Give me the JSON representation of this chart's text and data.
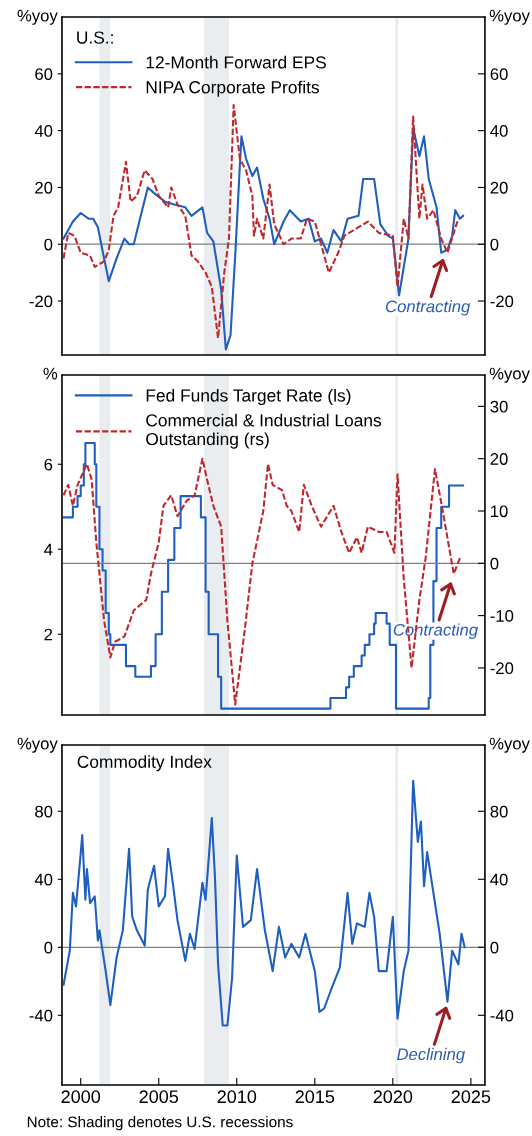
{
  "chart_data": [
    {
      "type": "line",
      "xlim": [
        1998.8,
        2025.9
      ],
      "ylim": [
        -39,
        80
      ],
      "yticks": [
        -20,
        0,
        20,
        40,
        60
      ],
      "y2lim": [
        -39,
        80
      ],
      "y2ticks": [
        -20,
        0,
        20,
        40,
        60
      ],
      "ylabel": "%yoy",
      "y2label": "%yoy",
      "tick_labels": "y",
      "legend": "top left",
      "legend_title": "U.S.:",
      "grid": false,
      "series": [
        {
          "name": "12-Month Forward EPS",
          "color": "#1f5fbf",
          "line_style": "solid",
          "x": [
            1998.9,
            1999.5,
            2000.0,
            2000.5,
            2000.8,
            2001.1,
            2001.5,
            2001.8,
            2002.3,
            2002.8,
            2003.1,
            2003.4,
            2003.8,
            2004.3,
            2004.7,
            2005.4,
            2006.0,
            2006.7,
            2007.1,
            2007.8,
            2008.1,
            2008.5,
            2009.0,
            2009.3,
            2009.6,
            2009.9,
            2010.2,
            2010.3,
            2010.6,
            2011.0,
            2011.3,
            2011.7,
            2012.1,
            2012.4,
            2013.0,
            2013.4,
            2014.1,
            2014.6,
            2015.0,
            2015.4,
            2015.8,
            2016.2,
            2016.7,
            2017.1,
            2017.8,
            2018.1,
            2018.8,
            2019.2,
            2019.7,
            2020.0,
            2020.4,
            2020.7,
            2021.0,
            2021.3,
            2021.7,
            2022.0,
            2022.3,
            2022.8,
            2023.1,
            2023.5,
            2023.8,
            2024.0,
            2024.3,
            2024.5
          ],
          "values": [
            2,
            8,
            11,
            9,
            9,
            6,
            -5,
            -13,
            -5,
            2,
            0,
            0,
            9,
            20,
            18,
            15,
            14,
            13,
            10,
            13,
            4,
            1,
            -16,
            -37,
            -32,
            -4,
            28,
            38,
            30,
            24,
            27,
            16,
            9,
            0,
            8,
            12,
            8,
            9,
            1,
            2,
            -3,
            5,
            1,
            9,
            10,
            23,
            23,
            7,
            3,
            2,
            -18,
            -8,
            2,
            41,
            31,
            38,
            23,
            13,
            -3,
            -2,
            3,
            12,
            9,
            10
          ]
        },
        {
          "name": "NIPA Corporate Profits",
          "color": "#c0282d",
          "line_style": "dashed",
          "x": [
            1998.9,
            1999.2,
            1999.6,
            2000.0,
            2000.6,
            2000.9,
            2001.5,
            2001.8,
            2002.1,
            2002.4,
            2002.9,
            2003.2,
            2003.6,
            2004.1,
            2004.6,
            2005.0,
            2005.6,
            2005.8,
            2006.2,
            2006.7,
            2007.1,
            2007.5,
            2008.0,
            2008.4,
            2008.8,
            2009.2,
            2009.5,
            2009.8,
            2010.2,
            2010.6,
            2011.0,
            2011.1,
            2011.3,
            2011.7,
            2012.1,
            2012.4,
            2013.0,
            2013.5,
            2014.1,
            2014.5,
            2015.0,
            2015.4,
            2015.9,
            2016.5,
            2016.9,
            2017.8,
            2018.4,
            2019.1,
            2020.0,
            2020.3,
            2020.7,
            2021.0,
            2021.3,
            2021.7,
            2021.9,
            2022.2,
            2022.6,
            2023.1,
            2023.5,
            2023.9,
            2024.2
          ],
          "values": [
            -5,
            4,
            3,
            -3,
            -4,
            -8,
            -6,
            -2,
            10,
            13,
            29,
            15,
            17,
            26,
            23,
            17,
            13,
            20,
            14,
            10,
            -4,
            -6,
            -10,
            -15,
            -33,
            -10,
            2,
            49,
            30,
            26,
            17,
            3,
            9,
            2,
            21,
            7,
            0,
            2,
            2,
            9,
            8,
            0,
            -10,
            -3,
            3,
            6,
            8,
            4,
            3,
            -15,
            9,
            2,
            45,
            9,
            21,
            9,
            12,
            2,
            -3,
            4,
            9
          ]
        }
      ],
      "ref_lines": [
        {
          "axis": "y",
          "value": 0,
          "color": "#808080"
        }
      ],
      "bands": [
        {
          "axis": "x",
          "from": 2001.2,
          "to": 2001.9,
          "color": "#e9edf0"
        },
        {
          "axis": "x",
          "from": 2007.9,
          "to": 2009.5,
          "color": "#e9edf0"
        },
        {
          "axis": "x",
          "from": 2020.15,
          "to": 2020.35,
          "color": "#e9edf0"
        }
      ],
      "annotations": [
        {
          "text": "Contracting",
          "x": 2023.3,
          "y": -4
        }
      ]
    },
    {
      "type": "line",
      "xlim": [
        1998.8,
        2025.9
      ],
      "ylim": [
        0.1,
        8.1
      ],
      "yticks": [
        2,
        4,
        6
      ],
      "y2lim": [
        -29,
        36
      ],
      "y2ticks": [
        -20,
        -10,
        0,
        10,
        20,
        30
      ],
      "ylabel": "%",
      "y2label": "%yoy",
      "tick_labels": "y",
      "legend": "top left",
      "grid": false,
      "series": [
        {
          "name": "Fed Funds Target Rate (ls)",
          "color": "#1f5fbf",
          "line_style": "solid",
          "type": "step",
          "x": [
            1998.9,
            1999.5,
            1999.8,
            2000.0,
            2000.2,
            2000.3,
            2000.9,
            2001.0,
            2001.2,
            2001.4,
            2001.6,
            2001.8,
            2001.9,
            2002.9,
            2003.5,
            2004.5,
            2004.8,
            2005.2,
            2005.6,
            2006.0,
            2006.4,
            2007.7,
            2008.0,
            2008.2,
            2008.8,
            2009.0,
            2016.0,
            2017.0,
            2017.2,
            2017.5,
            2018.0,
            2018.2,
            2018.5,
            2018.8,
            2018.9,
            2019.6,
            2019.8,
            2020.2,
            2022.3,
            2022.4,
            2022.6,
            2022.8,
            2023.1,
            2023.6,
            2024.5
          ],
          "values": [
            4.75,
            5.0,
            5.25,
            5.5,
            6.0,
            6.5,
            6.0,
            5.0,
            4.0,
            3.5,
            2.5,
            2.0,
            1.75,
            1.25,
            1.0,
            1.25,
            2.0,
            3.0,
            3.75,
            4.5,
            5.25,
            4.75,
            3.0,
            2.0,
            1.0,
            0.25,
            0.5,
            0.75,
            1.0,
            1.25,
            1.5,
            1.75,
            2.0,
            2.25,
            2.5,
            2.25,
            1.75,
            0.25,
            0.5,
            1.75,
            3.25,
            4.5,
            5.0,
            5.5,
            5.5
          ]
        },
        {
          "name": "Commercial & Industrial Loans\nOutstanding (rs)",
          "color": "#c0282d",
          "line_style": "dashed",
          "axis": "y2",
          "x": [
            1998.9,
            1999.2,
            1999.5,
            1999.8,
            2000.4,
            2000.7,
            2001.0,
            2001.5,
            2001.9,
            2002.2,
            2002.8,
            2003.4,
            2004.2,
            2004.5,
            2005.0,
            2005.3,
            2005.8,
            2006.2,
            2006.8,
            2007.3,
            2007.8,
            2008.1,
            2008.5,
            2009.0,
            2009.4,
            2009.9,
            2010.5,
            2011.0,
            2011.7,
            2012.0,
            2012.3,
            2012.9,
            2013.2,
            2013.5,
            2014.0,
            2014.3,
            2014.8,
            2015.4,
            2015.8,
            2016.2,
            2016.7,
            2017.2,
            2017.7,
            2018.0,
            2018.4,
            2019.1,
            2019.6,
            2020.1,
            2020.3,
            2020.7,
            2021.2,
            2021.7,
            2022.1,
            2022.7,
            2023.2,
            2023.9,
            2024.3
          ],
          "values": [
            13,
            15,
            11,
            15,
            19,
            16,
            4,
            -11,
            -18,
            -15,
            -14,
            -9,
            -7,
            -2,
            4,
            11,
            13,
            9,
            12,
            13,
            20,
            16,
            11,
            7,
            -11,
            -27,
            -13,
            0,
            10,
            19,
            15,
            14,
            11,
            10,
            6,
            15,
            11,
            7,
            9,
            11,
            6,
            2,
            5,
            2,
            7,
            6,
            6,
            2,
            17,
            -3,
            -20,
            -7,
            1,
            18,
            10,
            -2,
            1
          ]
        }
      ],
      "ref_lines": [
        {
          "axis": "y2",
          "value": 0,
          "color": "#808080"
        }
      ],
      "bands": [
        {
          "axis": "x",
          "from": 2001.2,
          "to": 2001.9,
          "color": "#e9edf0"
        },
        {
          "axis": "x",
          "from": 2007.9,
          "to": 2009.5,
          "color": "#e9edf0"
        },
        {
          "axis": "x",
          "from": 2020.15,
          "to": 2020.35,
          "color": "#e9edf0"
        }
      ],
      "annotations": [
        {
          "text": "Contracting",
          "x": 2023.8,
          "y": 3.3
        }
      ]
    },
    {
      "type": "line",
      "title": "Commodity Index",
      "xlim": [
        1998.8,
        2025.9
      ],
      "xticks": [
        2000,
        2005,
        2010,
        2015,
        2020,
        2025
      ],
      "ylim": [
        -81,
        119
      ],
      "yticks": [
        -40,
        0,
        40,
        80
      ],
      "y2lim": [
        -81,
        119
      ],
      "y2ticks": [
        -40,
        0,
        40,
        80
      ],
      "ylabel": "%yoy",
      "y2label": "%yoy",
      "grid": false,
      "series": [
        {
          "color": "#1f5fbf",
          "line_style": "solid",
          "x": [
            1998.9,
            1999.3,
            1999.5,
            1999.7,
            2000.1,
            2000.3,
            2000.4,
            2000.6,
            2000.9,
            2001.1,
            2001.2,
            2001.6,
            2001.9,
            2002.3,
            2002.7,
            2003.1,
            2003.3,
            2003.6,
            2004.1,
            2004.3,
            2004.7,
            2005.0,
            2005.4,
            2005.6,
            2005.9,
            2006.2,
            2006.7,
            2007.0,
            2007.3,
            2007.8,
            2008.0,
            2008.4,
            2008.6,
            2008.8,
            2009.1,
            2009.4,
            2009.7,
            2010.0,
            2010.4,
            2010.9,
            2011.3,
            2011.8,
            2012.3,
            2012.7,
            2013.1,
            2013.5,
            2014.0,
            2014.4,
            2015.0,
            2015.3,
            2015.6,
            2016.0,
            2016.6,
            2017.1,
            2017.4,
            2017.7,
            2018.2,
            2018.5,
            2018.8,
            2019.1,
            2019.6,
            2020.0,
            2020.3,
            2020.7,
            2021.0,
            2021.3,
            2021.6,
            2021.8,
            2022.0,
            2022.2,
            2022.7,
            2023.0,
            2023.5,
            2023.8,
            2024.2,
            2024.4,
            2024.6
          ],
          "values": [
            -22,
            -2,
            32,
            24,
            66,
            28,
            46,
            26,
            30,
            4,
            10,
            -14,
            -34,
            -6,
            10,
            58,
            18,
            10,
            1,
            34,
            48,
            24,
            30,
            58,
            38,
            16,
            -8,
            8,
            -1,
            38,
            28,
            76,
            42,
            -10,
            -46,
            -46,
            -18,
            54,
            12,
            16,
            46,
            10,
            -14,
            12,
            -6,
            2,
            -6,
            8,
            -14,
            -38,
            -36,
            -26,
            -12,
            32,
            2,
            14,
            12,
            32,
            18,
            -14,
            -14,
            18,
            -42,
            -14,
            -2,
            98,
            62,
            74,
            36,
            56,
            26,
            8,
            -32,
            -2,
            -10,
            8,
            0
          ]
        }
      ],
      "ref_lines": [
        {
          "axis": "y",
          "value": 0,
          "color": "#808080"
        }
      ],
      "bands": [
        {
          "axis": "x",
          "from": 2001.2,
          "to": 2001.9,
          "color": "#e9edf0"
        },
        {
          "axis": "x",
          "from": 2007.9,
          "to": 2009.5,
          "color": "#e9edf0"
        },
        {
          "axis": "x",
          "from": 2020.15,
          "to": 2020.35,
          "color": "#e9edf0"
        }
      ],
      "annotations": [
        {
          "text": "Declining",
          "x": 2023.5,
          "y": -33
        },
        "Note: Shading denotes U.S. recessions"
      ]
    }
  ]
}
